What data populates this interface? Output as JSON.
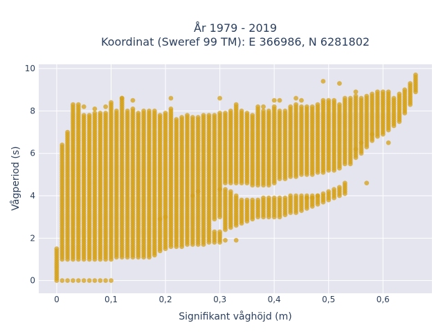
{
  "chart_data": {
    "type": "scatter",
    "title_lines": [
      "År 1979 - 2019",
      "Koordinat (Sweref 99 TM): E 366986, N 6281802"
    ],
    "xlabel": "Signifikant våghöjd (m)",
    "ylabel": "Vågperiod (s)",
    "xlim": [
      -0.033,
      0.69
    ],
    "ylim": [
      -0.6,
      10.2
    ],
    "x_ticks": [
      0,
      0.1,
      0.2,
      0.3,
      0.4,
      0.5,
      0.6
    ],
    "x_tick_labels": [
      "0",
      "0,1",
      "0,2",
      "0,3",
      "0,4",
      "0,5",
      "0,6"
    ],
    "y_ticks": [
      0,
      2,
      4,
      6,
      8,
      10
    ],
    "y_tick_labels": [
      "0",
      "2",
      "4",
      "6",
      "8",
      "10"
    ],
    "grid": true,
    "legend": "none",
    "colors": {
      "marker": "#d4a017",
      "plot_background": "#e5e5f0",
      "grid": "#ffffff",
      "text": "#2a3f5f"
    },
    "x_step": 0.01,
    "columns": [
      {
        "x": 0.0,
        "y_min": 0.0,
        "y_max": 1.5,
        "gaps": []
      },
      {
        "x": 0.01,
        "y_min": 0.0,
        "y_max": 6.4,
        "gaps": [
          [
            0.05,
            1.0
          ]
        ]
      },
      {
        "x": 0.02,
        "y_min": 0.0,
        "y_max": 7.0,
        "gaps": [
          [
            0.05,
            1.0
          ]
        ]
      },
      {
        "x": 0.03,
        "y_min": 0.0,
        "y_max": 8.3,
        "gaps": [
          [
            0.05,
            1.0
          ]
        ]
      },
      {
        "x": 0.04,
        "y_min": 0.0,
        "y_max": 8.2,
        "gaps": [
          [
            0.05,
            1.0
          ]
        ]
      },
      {
        "x": 0.05,
        "y_min": 0.0,
        "y_max": 7.8,
        "gaps": [
          [
            0.05,
            1.0
          ]
        ]
      },
      {
        "x": 0.06,
        "y_min": 0.0,
        "y_max": 7.8,
        "gaps": [
          [
            0.05,
            1.0
          ]
        ]
      },
      {
        "x": 0.07,
        "y_min": 0.0,
        "y_max": 7.9,
        "gaps": [
          [
            0.05,
            1.0
          ]
        ]
      },
      {
        "x": 0.08,
        "y_min": 0.0,
        "y_max": 7.9,
        "gaps": [
          [
            0.05,
            1.0
          ]
        ]
      },
      {
        "x": 0.09,
        "y_min": 0.0,
        "y_max": 7.9,
        "gaps": [
          [
            0.05,
            1.0
          ]
        ]
      },
      {
        "x": 0.1,
        "y_min": 0.0,
        "y_max": 8.4,
        "gaps": [
          [
            0.05,
            1.0
          ]
        ]
      },
      {
        "x": 0.11,
        "y_min": 1.1,
        "y_max": 8.0,
        "gaps": []
      },
      {
        "x": 0.12,
        "y_min": 1.1,
        "y_max": 8.6,
        "gaps": []
      },
      {
        "x": 0.13,
        "y_min": 1.1,
        "y_max": 8.0,
        "gaps": []
      },
      {
        "x": 0.14,
        "y_min": 1.1,
        "y_max": 8.1,
        "gaps": []
      },
      {
        "x": 0.15,
        "y_min": 1.1,
        "y_max": 7.9,
        "gaps": []
      },
      {
        "x": 0.16,
        "y_min": 1.1,
        "y_max": 8.0,
        "gaps": []
      },
      {
        "x": 0.17,
        "y_min": 1.1,
        "y_max": 8.0,
        "gaps": []
      },
      {
        "x": 0.18,
        "y_min": 1.2,
        "y_max": 8.0,
        "gaps": []
      },
      {
        "x": 0.19,
        "y_min": 1.4,
        "y_max": 7.8,
        "gaps": []
      },
      {
        "x": 0.2,
        "y_min": 1.5,
        "y_max": 7.9,
        "gaps": []
      },
      {
        "x": 0.21,
        "y_min": 1.6,
        "y_max": 8.1,
        "gaps": []
      },
      {
        "x": 0.22,
        "y_min": 1.6,
        "y_max": 7.6,
        "gaps": []
      },
      {
        "x": 0.23,
        "y_min": 1.6,
        "y_max": 7.7,
        "gaps": []
      },
      {
        "x": 0.24,
        "y_min": 1.7,
        "y_max": 7.8,
        "gaps": []
      },
      {
        "x": 0.25,
        "y_min": 1.7,
        "y_max": 7.7,
        "gaps": []
      },
      {
        "x": 0.26,
        "y_min": 1.7,
        "y_max": 7.7,
        "gaps": []
      },
      {
        "x": 0.27,
        "y_min": 1.7,
        "y_max": 7.8,
        "gaps": []
      },
      {
        "x": 0.28,
        "y_min": 1.8,
        "y_max": 7.8,
        "gaps": []
      },
      {
        "x": 0.29,
        "y_min": 1.8,
        "y_max": 7.8,
        "gaps": [
          [
            2.3,
            2.9
          ]
        ]
      },
      {
        "x": 0.3,
        "y_min": 1.8,
        "y_max": 7.9,
        "gaps": [
          [
            2.3,
            3.0
          ]
        ]
      },
      {
        "x": 0.31,
        "y_min": 2.4,
        "y_max": 7.9,
        "gaps": [
          [
            4.3,
            4.6
          ]
        ]
      },
      {
        "x": 0.32,
        "y_min": 2.5,
        "y_max": 8.0,
        "gaps": [
          [
            4.2,
            4.6
          ]
        ]
      },
      {
        "x": 0.33,
        "y_min": 2.6,
        "y_max": 8.2,
        "gaps": [
          [
            4.0,
            4.6
          ]
        ]
      },
      {
        "x": 0.34,
        "y_min": 2.7,
        "y_max": 8.0,
        "gaps": [
          [
            3.8,
            4.6
          ]
        ]
      },
      {
        "x": 0.35,
        "y_min": 2.8,
        "y_max": 7.9,
        "gaps": [
          [
            3.8,
            4.6
          ]
        ]
      },
      {
        "x": 0.36,
        "y_min": 2.9,
        "y_max": 7.8,
        "gaps": [
          [
            3.8,
            4.5
          ]
        ]
      },
      {
        "x": 0.37,
        "y_min": 3.0,
        "y_max": 8.2,
        "gaps": [
          [
            3.8,
            4.5
          ]
        ]
      },
      {
        "x": 0.38,
        "y_min": 3.0,
        "y_max": 8.0,
        "gaps": [
          [
            3.9,
            4.5
          ]
        ]
      },
      {
        "x": 0.39,
        "y_min": 3.0,
        "y_max": 8.0,
        "gaps": [
          [
            3.9,
            4.5
          ]
        ]
      },
      {
        "x": 0.4,
        "y_min": 3.0,
        "y_max": 8.2,
        "gaps": [
          [
            3.9,
            4.6
          ]
        ]
      },
      {
        "x": 0.41,
        "y_min": 3.0,
        "y_max": 8.0,
        "gaps": [
          [
            3.9,
            4.8
          ]
        ]
      },
      {
        "x": 0.42,
        "y_min": 3.1,
        "y_max": 8.0,
        "gaps": [
          [
            3.9,
            4.8
          ]
        ]
      },
      {
        "x": 0.43,
        "y_min": 3.2,
        "y_max": 8.2,
        "gaps": [
          [
            4.0,
            4.9
          ]
        ]
      },
      {
        "x": 0.44,
        "y_min": 3.2,
        "y_max": 8.3,
        "gaps": [
          [
            4.0,
            4.9
          ]
        ]
      },
      {
        "x": 0.45,
        "y_min": 3.3,
        "y_max": 8.2,
        "gaps": [
          [
            4.0,
            5.0
          ]
        ]
      },
      {
        "x": 0.46,
        "y_min": 3.4,
        "y_max": 8.2,
        "gaps": [
          [
            4.0,
            5.0
          ]
        ]
      },
      {
        "x": 0.47,
        "y_min": 3.5,
        "y_max": 8.2,
        "gaps": [
          [
            4.0,
            5.0
          ]
        ]
      },
      {
        "x": 0.48,
        "y_min": 3.6,
        "y_max": 8.3,
        "gaps": [
          [
            4.0,
            5.1
          ]
        ]
      },
      {
        "x": 0.49,
        "y_min": 3.7,
        "y_max": 8.5,
        "gaps": [
          [
            4.1,
            5.1
          ]
        ]
      },
      {
        "x": 0.5,
        "y_min": 3.8,
        "y_max": 8.5,
        "gaps": [
          [
            4.2,
            5.2
          ]
        ]
      },
      {
        "x": 0.51,
        "y_min": 3.9,
        "y_max": 8.5,
        "gaps": [
          [
            4.3,
            5.2
          ]
        ]
      },
      {
        "x": 0.52,
        "y_min": 4.0,
        "y_max": 8.3,
        "gaps": [
          [
            4.4,
            5.3
          ]
        ]
      },
      {
        "x": 0.53,
        "y_min": 4.1,
        "y_max": 8.6,
        "gaps": [
          [
            4.6,
            5.5
          ]
        ]
      },
      {
        "x": 0.54,
        "y_min": 5.5,
        "y_max": 8.6,
        "gaps": []
      },
      {
        "x": 0.55,
        "y_min": 5.8,
        "y_max": 8.7,
        "gaps": []
      },
      {
        "x": 0.56,
        "y_min": 6.0,
        "y_max": 8.6,
        "gaps": []
      },
      {
        "x": 0.57,
        "y_min": 6.3,
        "y_max": 8.7,
        "gaps": []
      },
      {
        "x": 0.58,
        "y_min": 6.6,
        "y_max": 8.8,
        "gaps": []
      },
      {
        "x": 0.59,
        "y_min": 6.8,
        "y_max": 8.9,
        "gaps": []
      },
      {
        "x": 0.6,
        "y_min": 6.9,
        "y_max": 8.9,
        "gaps": []
      },
      {
        "x": 0.61,
        "y_min": 7.1,
        "y_max": 8.9,
        "gaps": []
      },
      {
        "x": 0.62,
        "y_min": 7.3,
        "y_max": 8.6,
        "gaps": []
      },
      {
        "x": 0.63,
        "y_min": 7.5,
        "y_max": 8.8,
        "gaps": []
      },
      {
        "x": 0.64,
        "y_min": 7.9,
        "y_max": 9.0,
        "gaps": []
      },
      {
        "x": 0.65,
        "y_min": 8.3,
        "y_max": 9.3,
        "gaps": []
      },
      {
        "x": 0.66,
        "y_min": 8.9,
        "y_max": 9.7,
        "gaps": []
      }
    ],
    "outliers": [
      [
        0.04,
        8.3
      ],
      [
        0.05,
        8.2
      ],
      [
        0.07,
        8.1
      ],
      [
        0.09,
        8.2
      ],
      [
        0.12,
        8.6
      ],
      [
        0.14,
        8.5
      ],
      [
        0.21,
        8.6
      ],
      [
        0.3,
        8.6
      ],
      [
        0.33,
        8.3
      ],
      [
        0.38,
        8.2
      ],
      [
        0.4,
        8.5
      ],
      [
        0.41,
        8.5
      ],
      [
        0.44,
        8.6
      ],
      [
        0.45,
        8.5
      ],
      [
        0.49,
        9.4
      ],
      [
        0.52,
        9.3
      ],
      [
        0.55,
        8.9
      ],
      [
        0.57,
        4.6
      ],
      [
        0.58,
        6.9
      ],
      [
        0.61,
        6.5
      ],
      [
        0.19,
        2.9
      ],
      [
        0.2,
        3.0
      ],
      [
        0.25,
        4.0
      ],
      [
        0.26,
        4.2
      ],
      [
        0.3,
        4.3
      ],
      [
        0.31,
        1.9
      ],
      [
        0.33,
        1.9
      ],
      [
        0.46,
        3.9
      ],
      [
        0.47,
        3.9
      ],
      [
        0.48,
        4.0
      ],
      [
        0.55,
        6.2
      ],
      [
        0.56,
        6.5
      ]
    ]
  }
}
